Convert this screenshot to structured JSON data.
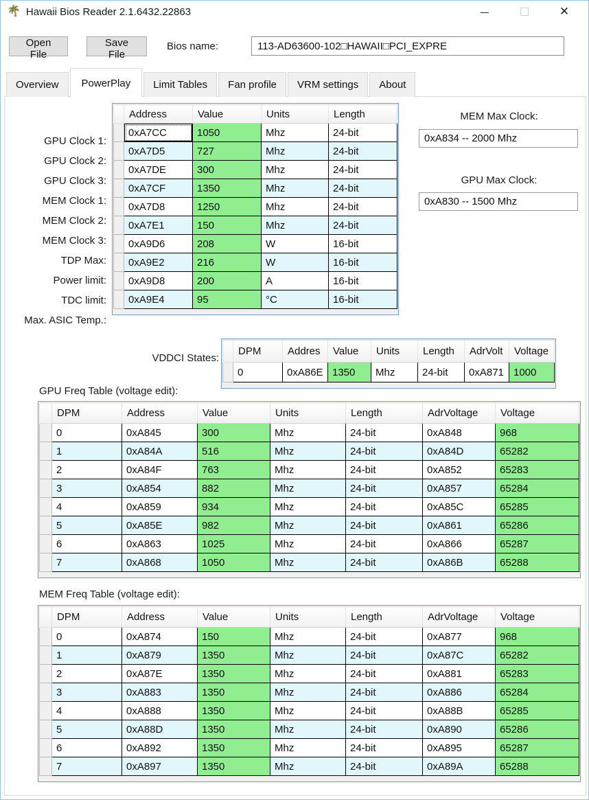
{
  "window": {
    "title": "Hawaii Bios Reader 2.1.6432.22863",
    "icon": "palm-tree",
    "controls": {
      "minimize": "minimize",
      "maximize": "maximize",
      "close": "close"
    }
  },
  "toolbar": {
    "open_label": "Open File",
    "save_label": "Save File",
    "bios_name_label": "Bios name:",
    "bios_name_value": "113-AD63600-102□HAWAII□PCI_EXPRE"
  },
  "tabs": [
    {
      "label": "Overview"
    },
    {
      "label": "PowerPlay"
    },
    {
      "label": "Limit Tables"
    },
    {
      "label": "Fan profile"
    },
    {
      "label": "VRM settings"
    },
    {
      "label": "About"
    }
  ],
  "clock_table": {
    "headers": [
      "Address",
      "Value",
      "Units",
      "Length"
    ],
    "row_labels": [
      "GPU Clock 1:",
      "GPU Clock 2:",
      "GPU Clock 3:",
      "MEM Clock 1:",
      "MEM Clock 2:",
      "MEM Clock 3:",
      "TDP Max:",
      "Power limit:",
      "TDC limit:",
      "Max. ASIC Temp.:"
    ],
    "rows": [
      [
        "0xA7CC",
        "1050",
        "Mhz",
        "24-bit"
      ],
      [
        "0xA7D5",
        "727",
        "Mhz",
        "24-bit"
      ],
      [
        "0xA7DE",
        "300",
        "Mhz",
        "24-bit"
      ],
      [
        "0xA7CF",
        "1350",
        "Mhz",
        "24-bit"
      ],
      [
        "0xA7D8",
        "1250",
        "Mhz",
        "24-bit"
      ],
      [
        "0xA7E1",
        "150",
        "Mhz",
        "24-bit"
      ],
      [
        "0xA9D6",
        "208",
        "W",
        "16-bit"
      ],
      [
        "0xA9E2",
        "216",
        "W",
        "16-bit"
      ],
      [
        "0xA9D8",
        "200",
        "A",
        "16-bit"
      ],
      [
        "0xA9E4",
        "95",
        "°C",
        "16-bit"
      ]
    ]
  },
  "max_clocks": {
    "mem_label": "MEM Max Clock:",
    "mem_value": "0xA834 -- 2000 Mhz",
    "gpu_label": "GPU Max Clock:",
    "gpu_value": "0xA830 -- 1500 Mhz"
  },
  "vddci": {
    "label": "VDDCI States:",
    "headers": [
      "DPM",
      "Addres",
      "Value",
      "Units",
      "Length",
      "AdrVolt",
      "Voltage"
    ],
    "rows": [
      [
        "0",
        "0xA86E",
        "1350",
        "Mhz",
        "24-bit",
        "0xA871",
        "1000"
      ]
    ]
  },
  "gpu_freq_table": {
    "title": "GPU Freq Table (voltage edit):",
    "headers": [
      "DPM",
      "Address",
      "Value",
      "Units",
      "Length",
      "AdrVoltage",
      "Voltage"
    ],
    "rows": [
      [
        "0",
        "0xA845",
        "300",
        "Mhz",
        "24-bit",
        "0xA848",
        "968"
      ],
      [
        "1",
        "0xA84A",
        "516",
        "Mhz",
        "24-bit",
        "0xA84D",
        "65282"
      ],
      [
        "2",
        "0xA84F",
        "763",
        "Mhz",
        "24-bit",
        "0xA852",
        "65283"
      ],
      [
        "3",
        "0xA854",
        "882",
        "Mhz",
        "24-bit",
        "0xA857",
        "65284"
      ],
      [
        "4",
        "0xA859",
        "934",
        "Mhz",
        "24-bit",
        "0xA85C",
        "65285"
      ],
      [
        "5",
        "0xA85E",
        "982",
        "Mhz",
        "24-bit",
        "0xA861",
        "65286"
      ],
      [
        "6",
        "0xA863",
        "1025",
        "Mhz",
        "24-bit",
        "0xA866",
        "65287"
      ],
      [
        "7",
        "0xA868",
        "1050",
        "Mhz",
        "24-bit",
        "0xA86B",
        "65288"
      ]
    ]
  },
  "mem_freq_table": {
    "title": "MEM Freq Table (voltage edit):",
    "headers": [
      "DPM",
      "Address",
      "Value",
      "Units",
      "Length",
      "AdrVoltage",
      "Voltage"
    ],
    "rows": [
      [
        "0",
        "0xA874",
        "150",
        "Mhz",
        "24-bit",
        "0xA877",
        "968"
      ],
      [
        "1",
        "0xA879",
        "1350",
        "Mhz",
        "24-bit",
        "0xA87C",
        "65282"
      ],
      [
        "2",
        "0xA87E",
        "1350",
        "Mhz",
        "24-bit",
        "0xA881",
        "65283"
      ],
      [
        "3",
        "0xA883",
        "1350",
        "Mhz",
        "24-bit",
        "0xA886",
        "65284"
      ],
      [
        "4",
        "0xA888",
        "1350",
        "Mhz",
        "24-bit",
        "0xA88B",
        "65285"
      ],
      [
        "5",
        "0xA88D",
        "1350",
        "Mhz",
        "24-bit",
        "0xA890",
        "65286"
      ],
      [
        "6",
        "0xA892",
        "1350",
        "Mhz",
        "24-bit",
        "0xA895",
        "65287"
      ],
      [
        "7",
        "0xA897",
        "1350",
        "Mhz",
        "24-bit",
        "0xA89A",
        "65288"
      ]
    ]
  },
  "colors": {
    "value_green": "#90ee90",
    "row_alt_cyan": "#e1f7fb",
    "grid_frame_blue": "#7a9cbf",
    "header_gray": "#f1f1f1"
  }
}
